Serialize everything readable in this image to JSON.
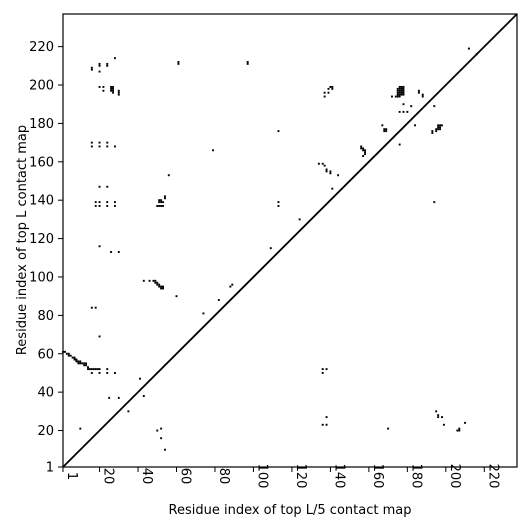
{
  "chart_data": {
    "type": "scatter",
    "subtype": "contact-map",
    "xlabel": "Residue index of top L/5 contact map",
    "ylabel": "Residue index of top L contact map",
    "xlim": [
      1,
      237
    ],
    "ylim": [
      1,
      237
    ],
    "x_ticks": [
      1,
      20,
      40,
      60,
      80,
      100,
      120,
      140,
      160,
      180,
      200,
      220
    ],
    "y_ticks": [
      1,
      20,
      40,
      60,
      80,
      100,
      120,
      140,
      160,
      180,
      200,
      220
    ],
    "diagonal": true,
    "grid": false,
    "marker_color": "#000000",
    "upper_triangle_contacts": [
      [
        16,
        208
      ],
      [
        16,
        209
      ],
      [
        20,
        210
      ],
      [
        20,
        211
      ],
      [
        20,
        207
      ],
      [
        24,
        210
      ],
      [
        24,
        211
      ],
      [
        28,
        214
      ],
      [
        20,
        199
      ],
      [
        22,
        199
      ],
      [
        22,
        197
      ],
      [
        26,
        199
      ],
      [
        26,
        198
      ],
      [
        26,
        197
      ],
      [
        27,
        199
      ],
      [
        27,
        198
      ],
      [
        27,
        197
      ],
      [
        27,
        196
      ],
      [
        30,
        197
      ],
      [
        30,
        196
      ],
      [
        30,
        195
      ],
      [
        16,
        170
      ],
      [
        16,
        168
      ],
      [
        20,
        170
      ],
      [
        20,
        168
      ],
      [
        24,
        170
      ],
      [
        24,
        168
      ],
      [
        28,
        168
      ],
      [
        20,
        147
      ],
      [
        24,
        147
      ],
      [
        18,
        139
      ],
      [
        18,
        137
      ],
      [
        20,
        139
      ],
      [
        20,
        137
      ],
      [
        24,
        139
      ],
      [
        24,
        137
      ],
      [
        28,
        139
      ],
      [
        28,
        137
      ],
      [
        20,
        116
      ],
      [
        26,
        113
      ],
      [
        30,
        113
      ],
      [
        50,
        137
      ],
      [
        51,
        137
      ],
      [
        51,
        139
      ],
      [
        51,
        140
      ],
      [
        52,
        137
      ],
      [
        52,
        139
      ],
      [
        52,
        140
      ],
      [
        53,
        137
      ],
      [
        53,
        139
      ],
      [
        54,
        141
      ],
      [
        54,
        142
      ],
      [
        56,
        153
      ],
      [
        61,
        212
      ],
      [
        61,
        211
      ],
      [
        97,
        212
      ],
      [
        97,
        211
      ],
      [
        43,
        98
      ],
      [
        46,
        98
      ],
      [
        48,
        98
      ],
      [
        49,
        98
      ],
      [
        49,
        97
      ],
      [
        50,
        97
      ],
      [
        50,
        96
      ],
      [
        51,
        96
      ],
      [
        51,
        95
      ],
      [
        52,
        95
      ],
      [
        52,
        94
      ],
      [
        53,
        95
      ],
      [
        53,
        94
      ],
      [
        60,
        90
      ],
      [
        16,
        84
      ],
      [
        18,
        84
      ],
      [
        20,
        69
      ],
      [
        74,
        81
      ],
      [
        79,
        166
      ],
      [
        82,
        88
      ],
      [
        88,
        95
      ],
      [
        89,
        96
      ],
      [
        109,
        115
      ],
      [
        113,
        139
      ],
      [
        113,
        137
      ],
      [
        113,
        176
      ],
      [
        124,
        130
      ],
      [
        134,
        159
      ],
      [
        136,
        159
      ],
      [
        137,
        158
      ],
      [
        138,
        156
      ],
      [
        138,
        155
      ],
      [
        140,
        155
      ],
      [
        140,
        154
      ],
      [
        141,
        146
      ],
      [
        144,
        153
      ],
      [
        137,
        194
      ],
      [
        137,
        196
      ],
      [
        139,
        196
      ],
      [
        139,
        198
      ],
      [
        140,
        199
      ],
      [
        141,
        198
      ],
      [
        141,
        199
      ],
      [
        156,
        168
      ],
      [
        156,
        167
      ],
      [
        157,
        167
      ],
      [
        157,
        166
      ],
      [
        158,
        166
      ],
      [
        158,
        165
      ],
      [
        158,
        164
      ],
      [
        157,
        163
      ],
      [
        167,
        179
      ],
      [
        168,
        177
      ],
      [
        168,
        176
      ],
      [
        169,
        176
      ],
      [
        169,
        177
      ],
      [
        172,
        194
      ],
      [
        174,
        194
      ],
      [
        175,
        194
      ],
      [
        175,
        195
      ],
      [
        175,
        196
      ],
      [
        175,
        197
      ],
      [
        175,
        198
      ],
      [
        176,
        194
      ],
      [
        176,
        195
      ],
      [
        176,
        196
      ],
      [
        176,
        197
      ],
      [
        176,
        198
      ],
      [
        176,
        199
      ],
      [
        177,
        195
      ],
      [
        177,
        196
      ],
      [
        177,
        197
      ],
      [
        177,
        198
      ],
      [
        177,
        199
      ],
      [
        178,
        195
      ],
      [
        178,
        196
      ],
      [
        178,
        197
      ],
      [
        178,
        198
      ],
      [
        178,
        199
      ],
      [
        176,
        169
      ],
      [
        176,
        186
      ],
      [
        178,
        186
      ],
      [
        180,
        186
      ],
      [
        178,
        190
      ],
      [
        182,
        189
      ],
      [
        184,
        179
      ],
      [
        186,
        197
      ],
      [
        186,
        196
      ],
      [
        188,
        195
      ],
      [
        188,
        194
      ],
      [
        193,
        175
      ],
      [
        193,
        176
      ],
      [
        194,
        189
      ],
      [
        195,
        176
      ],
      [
        195,
        177
      ],
      [
        196,
        177
      ],
      [
        196,
        178
      ],
      [
        196,
        179
      ],
      [
        197,
        177
      ],
      [
        197,
        178
      ],
      [
        197,
        179
      ],
      [
        198,
        179
      ],
      [
        194,
        139
      ],
      [
        212,
        219
      ],
      [
        216,
        216
      ]
    ],
    "lower_triangle_contacts": [
      [
        1,
        61
      ],
      [
        2,
        61
      ],
      [
        3,
        60
      ],
      [
        4,
        60
      ],
      [
        4,
        59
      ],
      [
        5,
        59
      ],
      [
        6,
        58
      ],
      [
        7,
        58
      ],
      [
        7,
        57
      ],
      [
        8,
        57
      ],
      [
        8,
        56
      ],
      [
        9,
        56
      ],
      [
        9,
        55
      ],
      [
        10,
        56
      ],
      [
        10,
        55
      ],
      [
        11,
        55
      ],
      [
        12,
        54
      ],
      [
        12,
        55
      ],
      [
        13,
        55
      ],
      [
        13,
        54
      ],
      [
        14,
        53
      ],
      [
        14,
        52
      ],
      [
        15,
        52
      ],
      [
        16,
        52
      ],
      [
        17,
        52
      ],
      [
        18,
        52
      ],
      [
        19,
        52
      ],
      [
        16,
        50
      ],
      [
        20,
        52
      ],
      [
        20,
        50
      ],
      [
        24,
        52
      ],
      [
        24,
        50
      ],
      [
        28,
        50
      ],
      [
        10,
        21
      ],
      [
        25,
        37
      ],
      [
        30,
        37
      ],
      [
        35,
        30
      ],
      [
        41,
        47
      ],
      [
        43,
        38
      ],
      [
        50,
        20
      ],
      [
        52,
        21
      ],
      [
        52,
        16
      ],
      [
        54,
        10
      ],
      [
        136,
        52
      ],
      [
        136,
        50
      ],
      [
        138,
        52
      ],
      [
        136,
        23
      ],
      [
        138,
        23
      ],
      [
        138,
        27
      ],
      [
        170,
        21
      ],
      [
        195,
        30
      ],
      [
        196,
        28
      ],
      [
        196,
        27
      ],
      [
        198,
        27
      ],
      [
        199,
        23
      ],
      [
        206,
        20
      ],
      [
        207,
        21
      ],
      [
        207,
        20
      ],
      [
        210,
        24
      ]
    ]
  }
}
